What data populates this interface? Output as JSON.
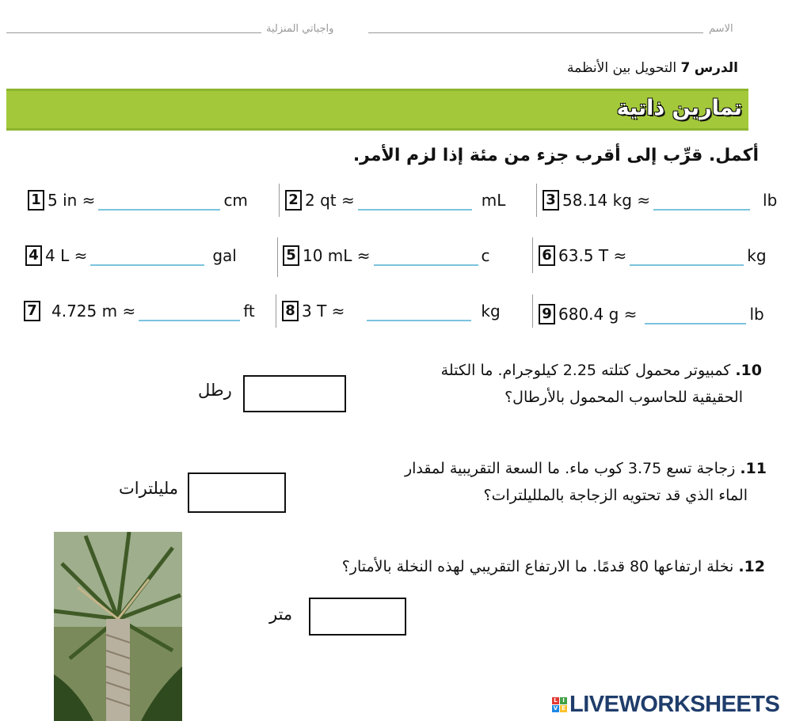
{
  "header": {
    "name_label": "الاسم",
    "homework_label": "واجباتي المنزلية"
  },
  "lesson": {
    "prefix": "الدرس",
    "number": "7",
    "title": "التحويل بين الأنظمة"
  },
  "section_title": "تمارين ذاتية",
  "instruction": "أكمل. قرِّب إلى أقرب جزء من مئة إذا لزم الأمر.",
  "conversions": [
    {
      "num": "1",
      "from": "5 in ≈",
      "value": "",
      "unit": "cm"
    },
    {
      "num": "2",
      "from": "2 qt ≈",
      "value": "",
      "unit": "mL"
    },
    {
      "num": "3",
      "from": "58.14 kg ≈",
      "value": "",
      "unit": "lb"
    },
    {
      "num": "4",
      "from": "4 L ≈",
      "value": "",
      "unit": "gal"
    },
    {
      "num": "5",
      "from": "10 mL ≈",
      "value": "",
      "unit": "c"
    },
    {
      "num": "6",
      "from": "63.5 T ≈",
      "value": "",
      "unit": "kg"
    },
    {
      "num": "7",
      "from": "4.725 m ≈",
      "value": "",
      "unit": "ft"
    },
    {
      "num": "8",
      "from": "3 T ≈",
      "value": "",
      "unit": "kg"
    },
    {
      "num": "9",
      "from": "680.4 g ≈",
      "value": "",
      "unit": "lb"
    }
  ],
  "problems": [
    {
      "num": "10.",
      "line1": "كمبيوتر محمول كتلته 2.25 كيلوجرام. ما الكتلة",
      "line2": "الحقيقية للحاسوب المحمول بالأرطال؟",
      "value": "",
      "unit": "رطل"
    },
    {
      "num": "11.",
      "line1": "زجاجة تسع 3.75 كوب ماء. ما السعة التقريبية لمقدار",
      "line2": "الماء الذي قد تحتويه الزجاجة بالملليلترات؟",
      "value": "",
      "unit": "مليلترات"
    },
    {
      "num": "12.",
      "line1": "نخلة ارتفاعها 80 قدمًا. ما الارتفاع التقريبي لهذه النخلة بالأمتار؟",
      "line2": "",
      "value": "",
      "unit": "متر"
    }
  ],
  "image": {
    "subject": "palm-tree"
  },
  "brand": {
    "name": "LIVEWORKSHEETS",
    "letters": [
      "L",
      "I",
      "V",
      "E"
    ],
    "colors": [
      "#e53935",
      "#43a047",
      "#1e88e5",
      "#fbc02d"
    ]
  },
  "colors": {
    "accent_green": "#a3c93a",
    "blank_line": "#7cc3dd",
    "brand_text": "#1f3d6b"
  }
}
